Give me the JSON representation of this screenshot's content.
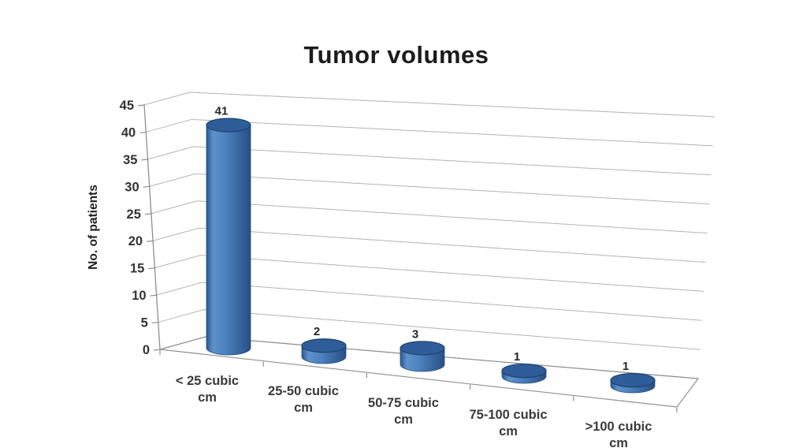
{
  "chart_data": {
    "type": "bar",
    "subtype": "3d-cylinder",
    "title": "Tumor volumes",
    "categories": [
      "< 25 cubic cm",
      "25-50 cubic cm",
      "50-75 cubic cm",
      "75-100 cubic cm",
      ">100 cubic cm"
    ],
    "values": [
      41,
      2,
      3,
      1,
      1
    ],
    "data_labels": [
      "41",
      "2",
      "3",
      "1",
      "1"
    ],
    "xlabel": "",
    "ylabel": "No. of patients",
    "ylim": [
      0,
      45
    ],
    "ytick_step": 5,
    "yticks": [
      0,
      5,
      10,
      15,
      20,
      25,
      30,
      35,
      40,
      45
    ],
    "grid": true,
    "legend": false,
    "colors": {
      "bar_edge_dark": "#284f80",
      "bar_highlight": "#5e92cc",
      "bar_mid": "#4b80bd",
      "bar_top_face": "#2e5d99",
      "bar_top_rim": "#1e4270",
      "gridline": "#b3b3b3",
      "axis": "#8f8f8f",
      "tick_text": "#333333",
      "category_text": "#3a3a3a",
      "data_label_text": "#262626",
      "title_text": "#1c1c1c"
    }
  }
}
